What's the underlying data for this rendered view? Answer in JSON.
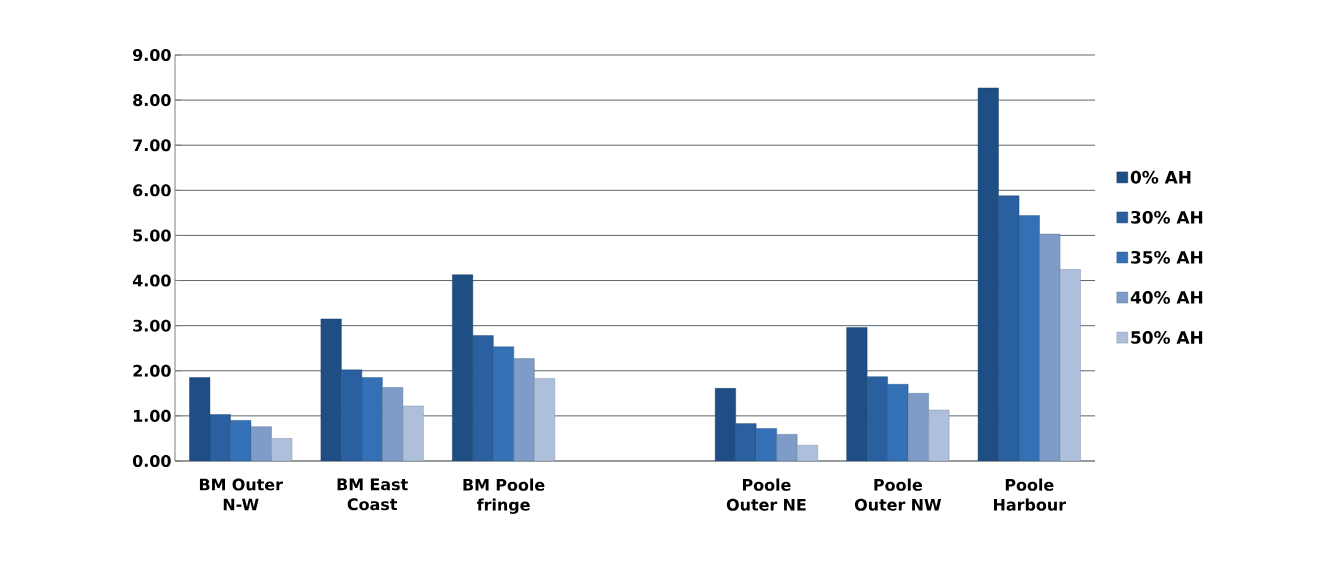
{
  "chart_data": {
    "type": "bar",
    "categories": [
      "BM Outer N-W",
      "BM East Coast",
      "BM Poole fringe",
      null,
      "Poole Outer NE",
      "Poole Outer NW",
      "Poole Harbour"
    ],
    "series": [
      {
        "name": "0% AH",
        "color": "#1f4e85",
        "values": [
          1.85,
          3.15,
          4.13,
          null,
          1.61,
          2.96,
          8.27
        ]
      },
      {
        "name": "30% AH",
        "color": "#2a5fa0",
        "values": [
          1.03,
          2.02,
          2.78,
          null,
          0.83,
          1.87,
          5.88
        ]
      },
      {
        "name": "35% AH",
        "color": "#3470b5",
        "values": [
          0.9,
          1.85,
          2.53,
          null,
          0.72,
          1.7,
          5.44
        ]
      },
      {
        "name": "40% AH",
        "color": "#7f9cc8",
        "values": [
          0.76,
          1.63,
          2.27,
          null,
          0.59,
          1.5,
          5.03
        ]
      },
      {
        "name": "50% AH",
        "color": "#aebfdc",
        "values": [
          0.5,
          1.22,
          1.83,
          null,
          0.35,
          1.13,
          4.25
        ]
      }
    ],
    "ylim": [
      0,
      9
    ],
    "yticks": [
      {
        "value": 0,
        "label": "0.00"
      },
      {
        "value": 1,
        "label": "1.00"
      },
      {
        "value": 2,
        "label": "2.00"
      },
      {
        "value": 3,
        "label": "3.00"
      },
      {
        "value": 4,
        "label": "4.00"
      },
      {
        "value": 5,
        "label": "5.00"
      },
      {
        "value": 6,
        "label": "6.00"
      },
      {
        "value": 7,
        "label": "7.00"
      },
      {
        "value": 8,
        "label": "8.00"
      },
      {
        "value": 9,
        "label": "9.00"
      }
    ],
    "grid": "y",
    "legend": "right"
  }
}
